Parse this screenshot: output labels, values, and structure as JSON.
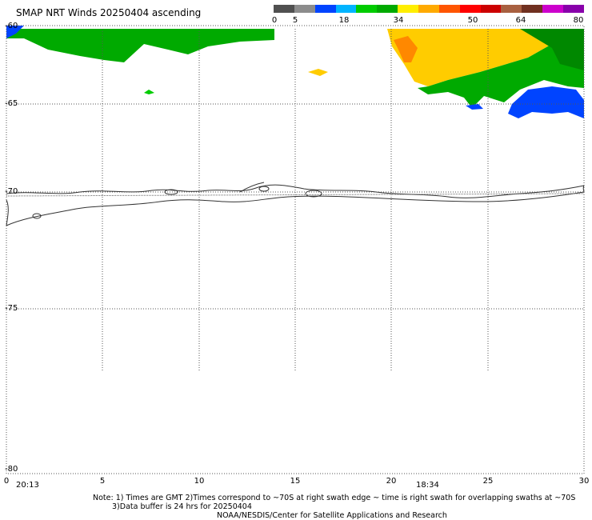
{
  "title": "SMAP NRT Winds 20250404 ascending",
  "colorbar": {
    "ticks": [
      "0",
      "5",
      "18",
      "34",
      "50",
      "64",
      "80"
    ],
    "colors": [
      "#505050",
      "#8c8c8c",
      "#0044ff",
      "#00b4ff",
      "#00cc00",
      "#00aa00",
      "#ffee00",
      "#ffaa00",
      "#ff5500",
      "#ff0000",
      "#cc0000",
      "#a86040",
      "#703020",
      "#cc00cc",
      "#8800aa"
    ]
  },
  "lat_labels": [
    "-60",
    "-65",
    "-70",
    "-75",
    "-80"
  ],
  "lon_labels": [
    "0",
    "5",
    "10",
    "15",
    "20",
    "25",
    "30"
  ],
  "times": [
    "20:13",
    "18:34"
  ],
  "notes": {
    "line1": "Note: 1) Times are GMT  2)Times correspond to ~70S at right swath edge ~ time is right swath for overlapping swaths at ~70S",
    "line2": "3)Data buffer is 24 hrs for 20250404",
    "line3": "NOAA/NESDIS/Center for Satellite Applications and Research"
  },
  "wind_colors": {
    "blue": "#0044ff",
    "green": "#00aa00",
    "green_light": "#00cc00",
    "yellow": "#ffcc00",
    "orange": "#ff8800",
    "dark_green": "#008800"
  }
}
